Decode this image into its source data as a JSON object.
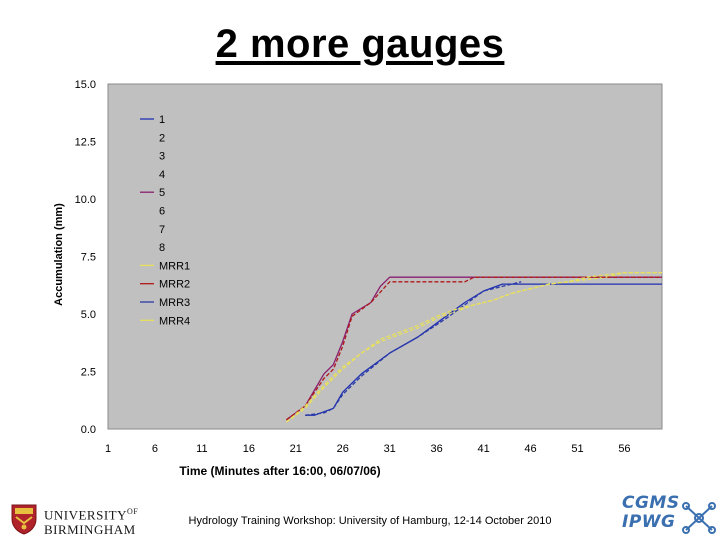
{
  "slide": {
    "title": "2 more gauges",
    "footer": "Hydrology Training Workshop: University of Hamburg, 12-14 October 2010",
    "logo_left": {
      "line1": "UNIVERSITY",
      "of": "OF",
      "line2": "BIRMINGHAM"
    },
    "logo_right": {
      "line1": "CGMS",
      "line2": "IPWG"
    }
  },
  "colors": {
    "plot_bg": "#c0c0c0",
    "series_1": "#1f2fb0",
    "series_5": "#8a1f6e",
    "series_mrr1": "#e8e05a",
    "series_mrr2": "#b01818",
    "series_mrr3": "#2a3aa8",
    "series_mrr4": "#e8e05a"
  },
  "chart_data": {
    "type": "line",
    "title": "",
    "xlabel": "Time (Minutes after 16:00, 06/07/06)",
    "ylabel": "Accumulation (mm)",
    "xlim": [
      1,
      60
    ],
    "ylim": [
      0,
      15
    ],
    "x_ticks": [
      "1",
      "6",
      "11",
      "16",
      "21",
      "26",
      "31",
      "36",
      "41",
      "46",
      "51",
      "56"
    ],
    "y_ticks": [
      "0.0",
      "2.5",
      "5.0",
      "7.5",
      "10.0",
      "12.5",
      "15.0"
    ],
    "grid": false,
    "legend_position": "top-left",
    "legend": [
      "1",
      "2",
      "3",
      "4",
      "5",
      "6",
      "7",
      "8",
      "MRR1",
      "MRR2",
      "MRR3",
      "MRR4"
    ],
    "series": [
      {
        "name": "1",
        "color": "#1f2fb0",
        "dash": "solid",
        "points": [
          [
            22,
            0.6
          ],
          [
            23,
            0.6
          ],
          [
            25,
            0.9
          ],
          [
            26,
            1.6
          ],
          [
            28,
            2.4
          ],
          [
            31,
            3.3
          ],
          [
            34,
            4.0
          ],
          [
            37,
            4.9
          ],
          [
            39,
            5.5
          ],
          [
            41,
            6.0
          ],
          [
            43,
            6.3
          ],
          [
            47,
            6.3
          ],
          [
            50,
            6.3
          ],
          [
            60,
            6.3
          ]
        ]
      },
      {
        "name": "5",
        "color": "#8a1f6e",
        "dash": "solid",
        "points": [
          [
            20,
            0.4
          ],
          [
            22,
            1.0
          ],
          [
            24,
            2.4
          ],
          [
            25,
            2.8
          ],
          [
            26,
            3.8
          ],
          [
            27,
            5.0
          ],
          [
            29,
            5.5
          ],
          [
            30,
            6.2
          ],
          [
            31,
            6.6
          ],
          [
            34,
            6.6
          ],
          [
            39,
            6.6
          ],
          [
            40,
            6.6
          ],
          [
            60,
            6.6
          ]
        ]
      },
      {
        "name": "MRR1",
        "color": "#e8e05a",
        "dash": "dashed",
        "points": [
          [
            20,
            0.3
          ],
          [
            22,
            0.9
          ],
          [
            24,
            1.8
          ],
          [
            26,
            2.6
          ],
          [
            28,
            3.3
          ],
          [
            30,
            3.8
          ],
          [
            32,
            4.1
          ],
          [
            34,
            4.4
          ],
          [
            36,
            4.8
          ],
          [
            38,
            5.1
          ],
          [
            40,
            5.4
          ],
          [
            42,
            5.6
          ],
          [
            44,
            5.9
          ],
          [
            46,
            6.1
          ],
          [
            48,
            6.3
          ],
          [
            50,
            6.4
          ],
          [
            52,
            6.5
          ],
          [
            54,
            6.6
          ],
          [
            56,
            6.8
          ],
          [
            60,
            6.8
          ]
        ]
      },
      {
        "name": "MRR2",
        "color": "#b01818",
        "dash": "dashed",
        "points": [
          [
            20,
            0.4
          ],
          [
            22,
            1.0
          ],
          [
            24,
            2.2
          ],
          [
            25,
            2.6
          ],
          [
            26,
            3.6
          ],
          [
            27,
            4.9
          ],
          [
            29,
            5.5
          ],
          [
            31,
            6.4
          ],
          [
            34,
            6.4
          ],
          [
            39,
            6.4
          ],
          [
            40,
            6.6
          ],
          [
            60,
            6.6
          ]
        ]
      },
      {
        "name": "MRR3",
        "color": "#2a3aa8",
        "dash": "dashed",
        "points": [
          [
            22,
            0.6
          ],
          [
            24,
            0.7
          ],
          [
            25,
            0.9
          ],
          [
            26,
            1.5
          ],
          [
            28,
            2.3
          ],
          [
            31,
            3.3
          ],
          [
            34,
            4.0
          ],
          [
            37,
            4.8
          ],
          [
            39,
            5.4
          ],
          [
            41,
            6.0
          ],
          [
            43,
            6.2
          ],
          [
            45,
            6.4
          ]
        ]
      },
      {
        "name": "MRR4",
        "color": "#e8e05a",
        "dash": "dashed",
        "points": [
          [
            20,
            0.3
          ],
          [
            22,
            1.0
          ],
          [
            24,
            1.9
          ],
          [
            26,
            2.7
          ],
          [
            28,
            3.3
          ],
          [
            30,
            3.9
          ],
          [
            32,
            4.2
          ],
          [
            34,
            4.5
          ],
          [
            36,
            4.9
          ],
          [
            38,
            5.2
          ],
          [
            40,
            5.4
          ],
          [
            42,
            5.6
          ],
          [
            44,
            5.9
          ],
          [
            46,
            6.1
          ],
          [
            48,
            6.3
          ],
          [
            50,
            6.4
          ],
          [
            52,
            6.6
          ],
          [
            54,
            6.7
          ],
          [
            56,
            6.8
          ],
          [
            60,
            6.8
          ]
        ]
      }
    ]
  }
}
